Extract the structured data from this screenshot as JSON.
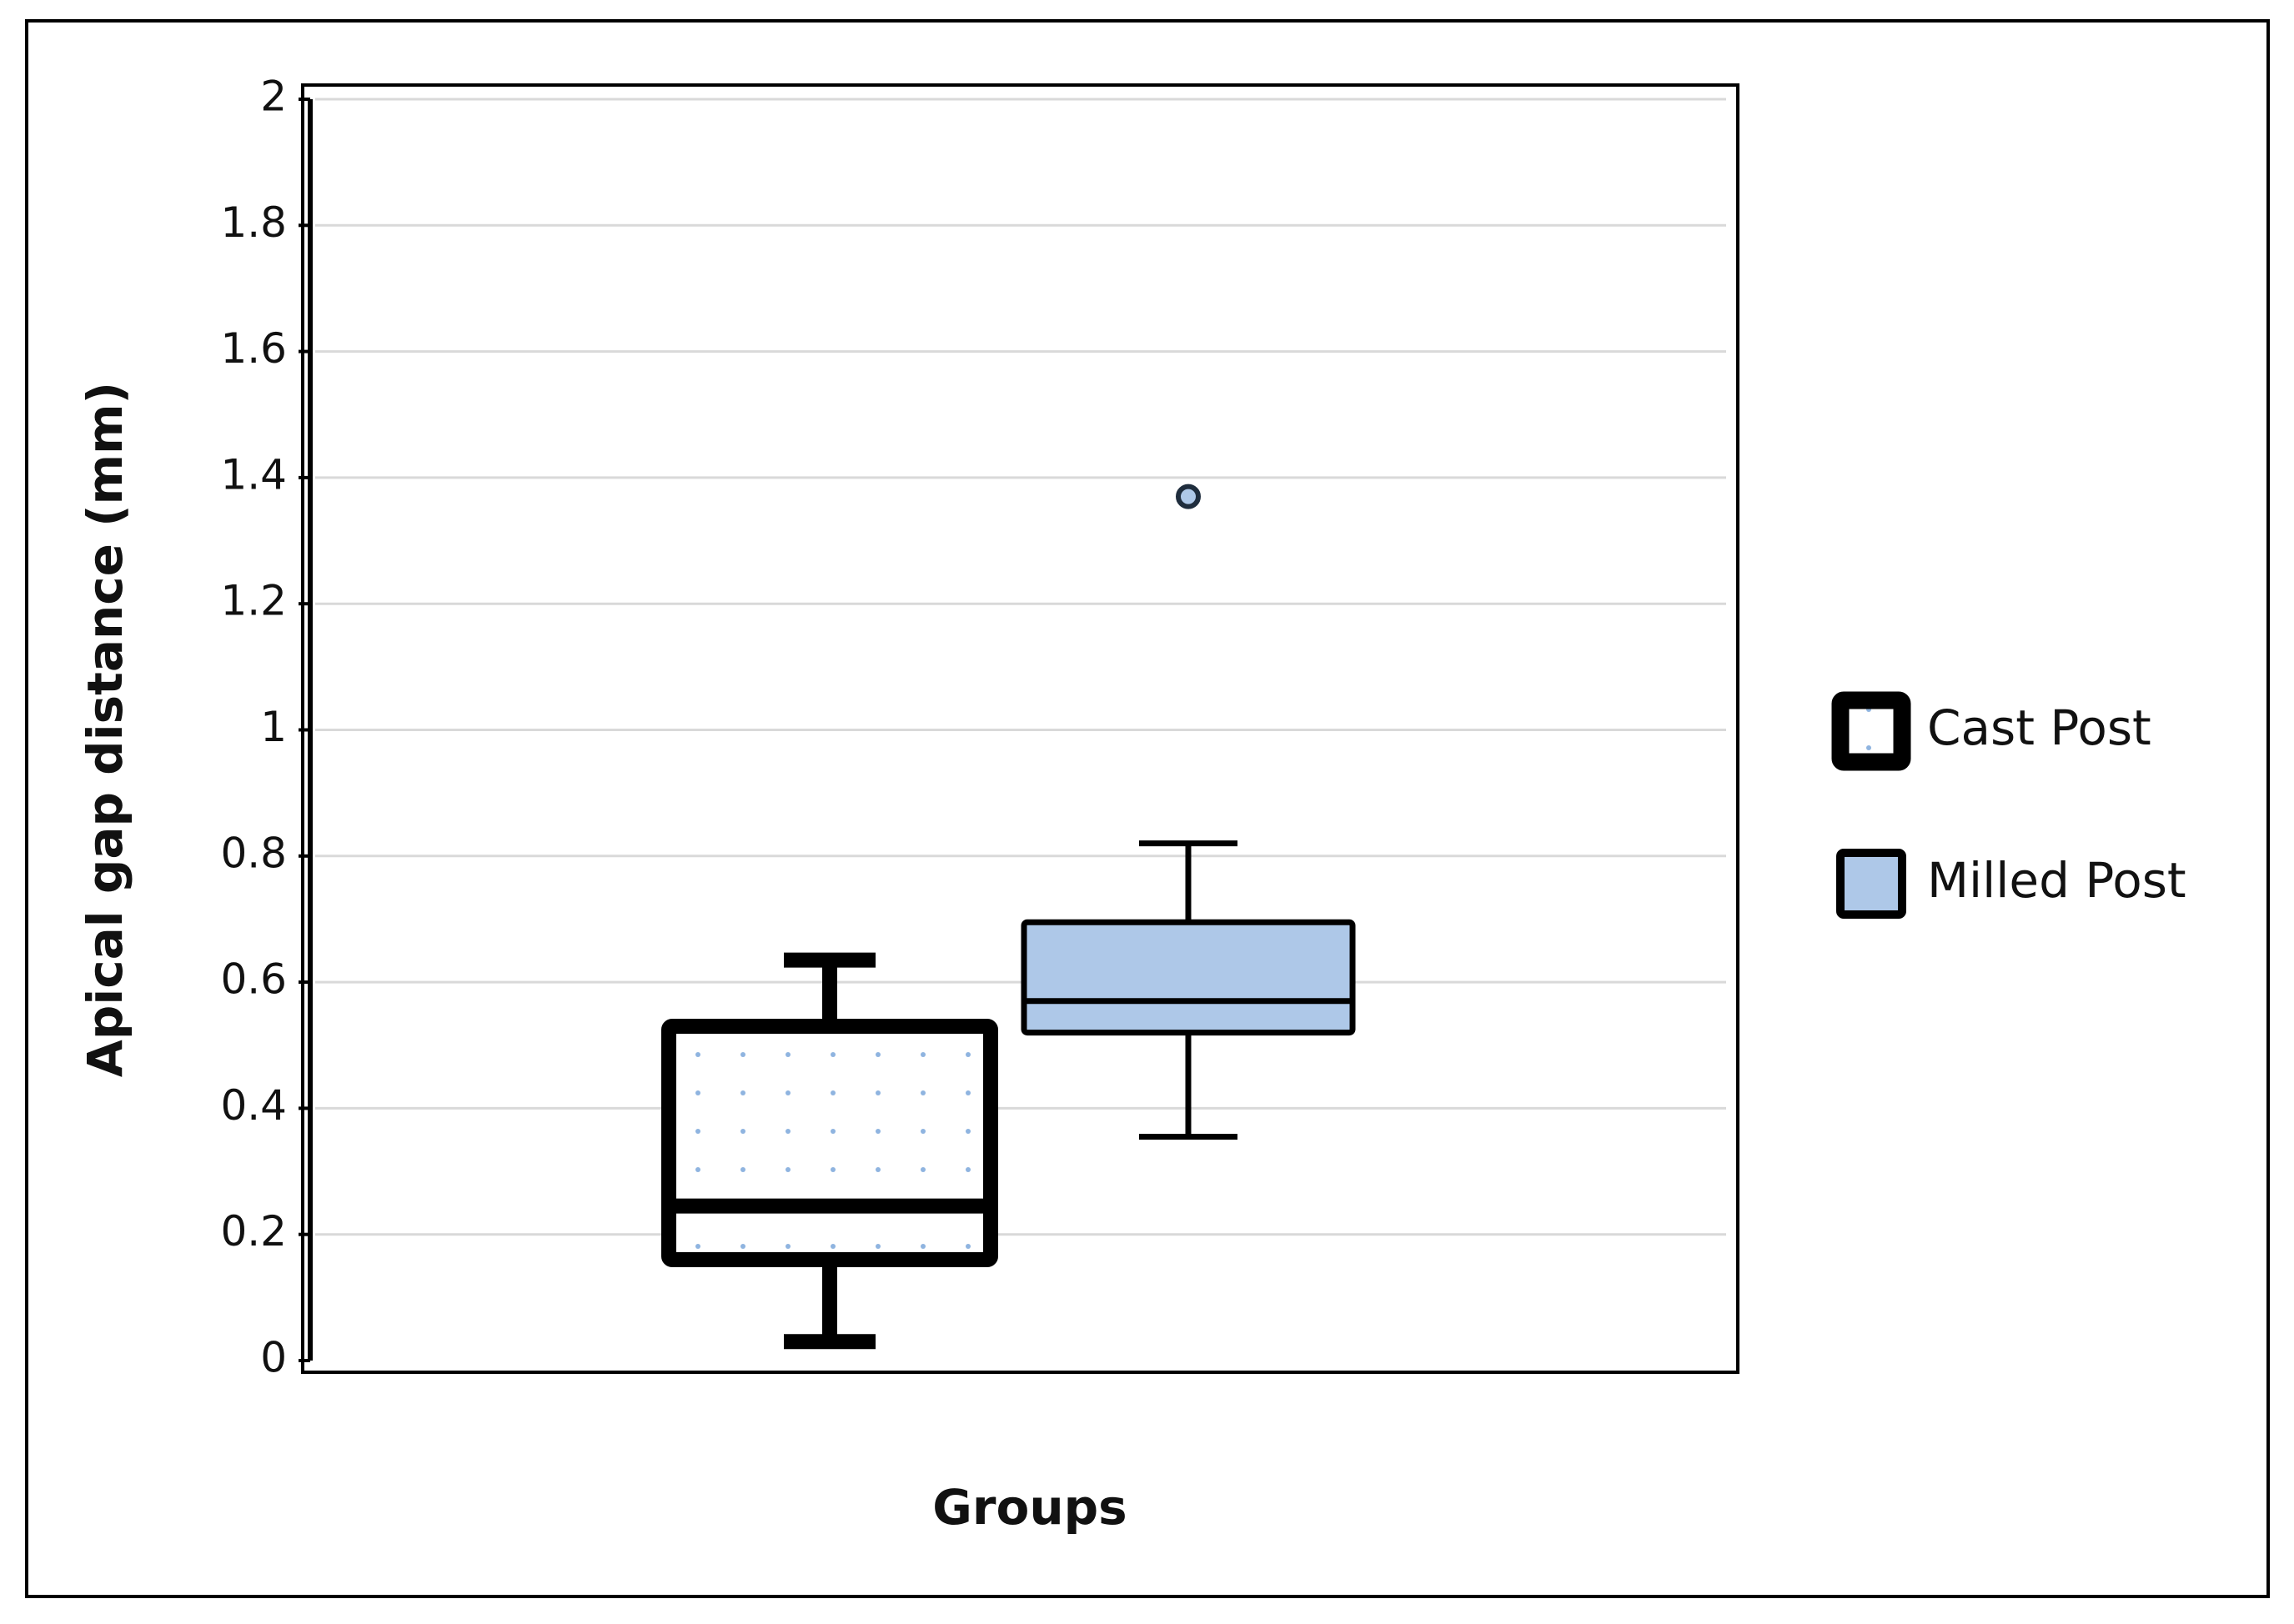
{
  "chart_data": {
    "type": "box",
    "y_label": "Apical gap distance (mm)",
    "x_label": "Groups",
    "ylim": [
      0,
      2
    ],
    "yticks": [
      0,
      0.2,
      0.4,
      0.6,
      0.8,
      1,
      1.2,
      1.4,
      1.6,
      1.8,
      2
    ],
    "grid": true,
    "legend": "right",
    "series": [
      {
        "name": "Cast Post",
        "color": "#000000",
        "fill": "#ffffff",
        "pattern": "dots",
        "min": 0.03,
        "q1": 0.16,
        "median": 0.245,
        "q3": 0.53,
        "max": 0.635,
        "outliers": []
      },
      {
        "name": "Milled Post",
        "color": "#000000",
        "fill": "#aec8e8",
        "pattern": "none",
        "min": 0.355,
        "q1": 0.52,
        "median": 0.57,
        "q3": 0.695,
        "max": 0.82,
        "outliers": [
          1.37
        ]
      }
    ]
  }
}
